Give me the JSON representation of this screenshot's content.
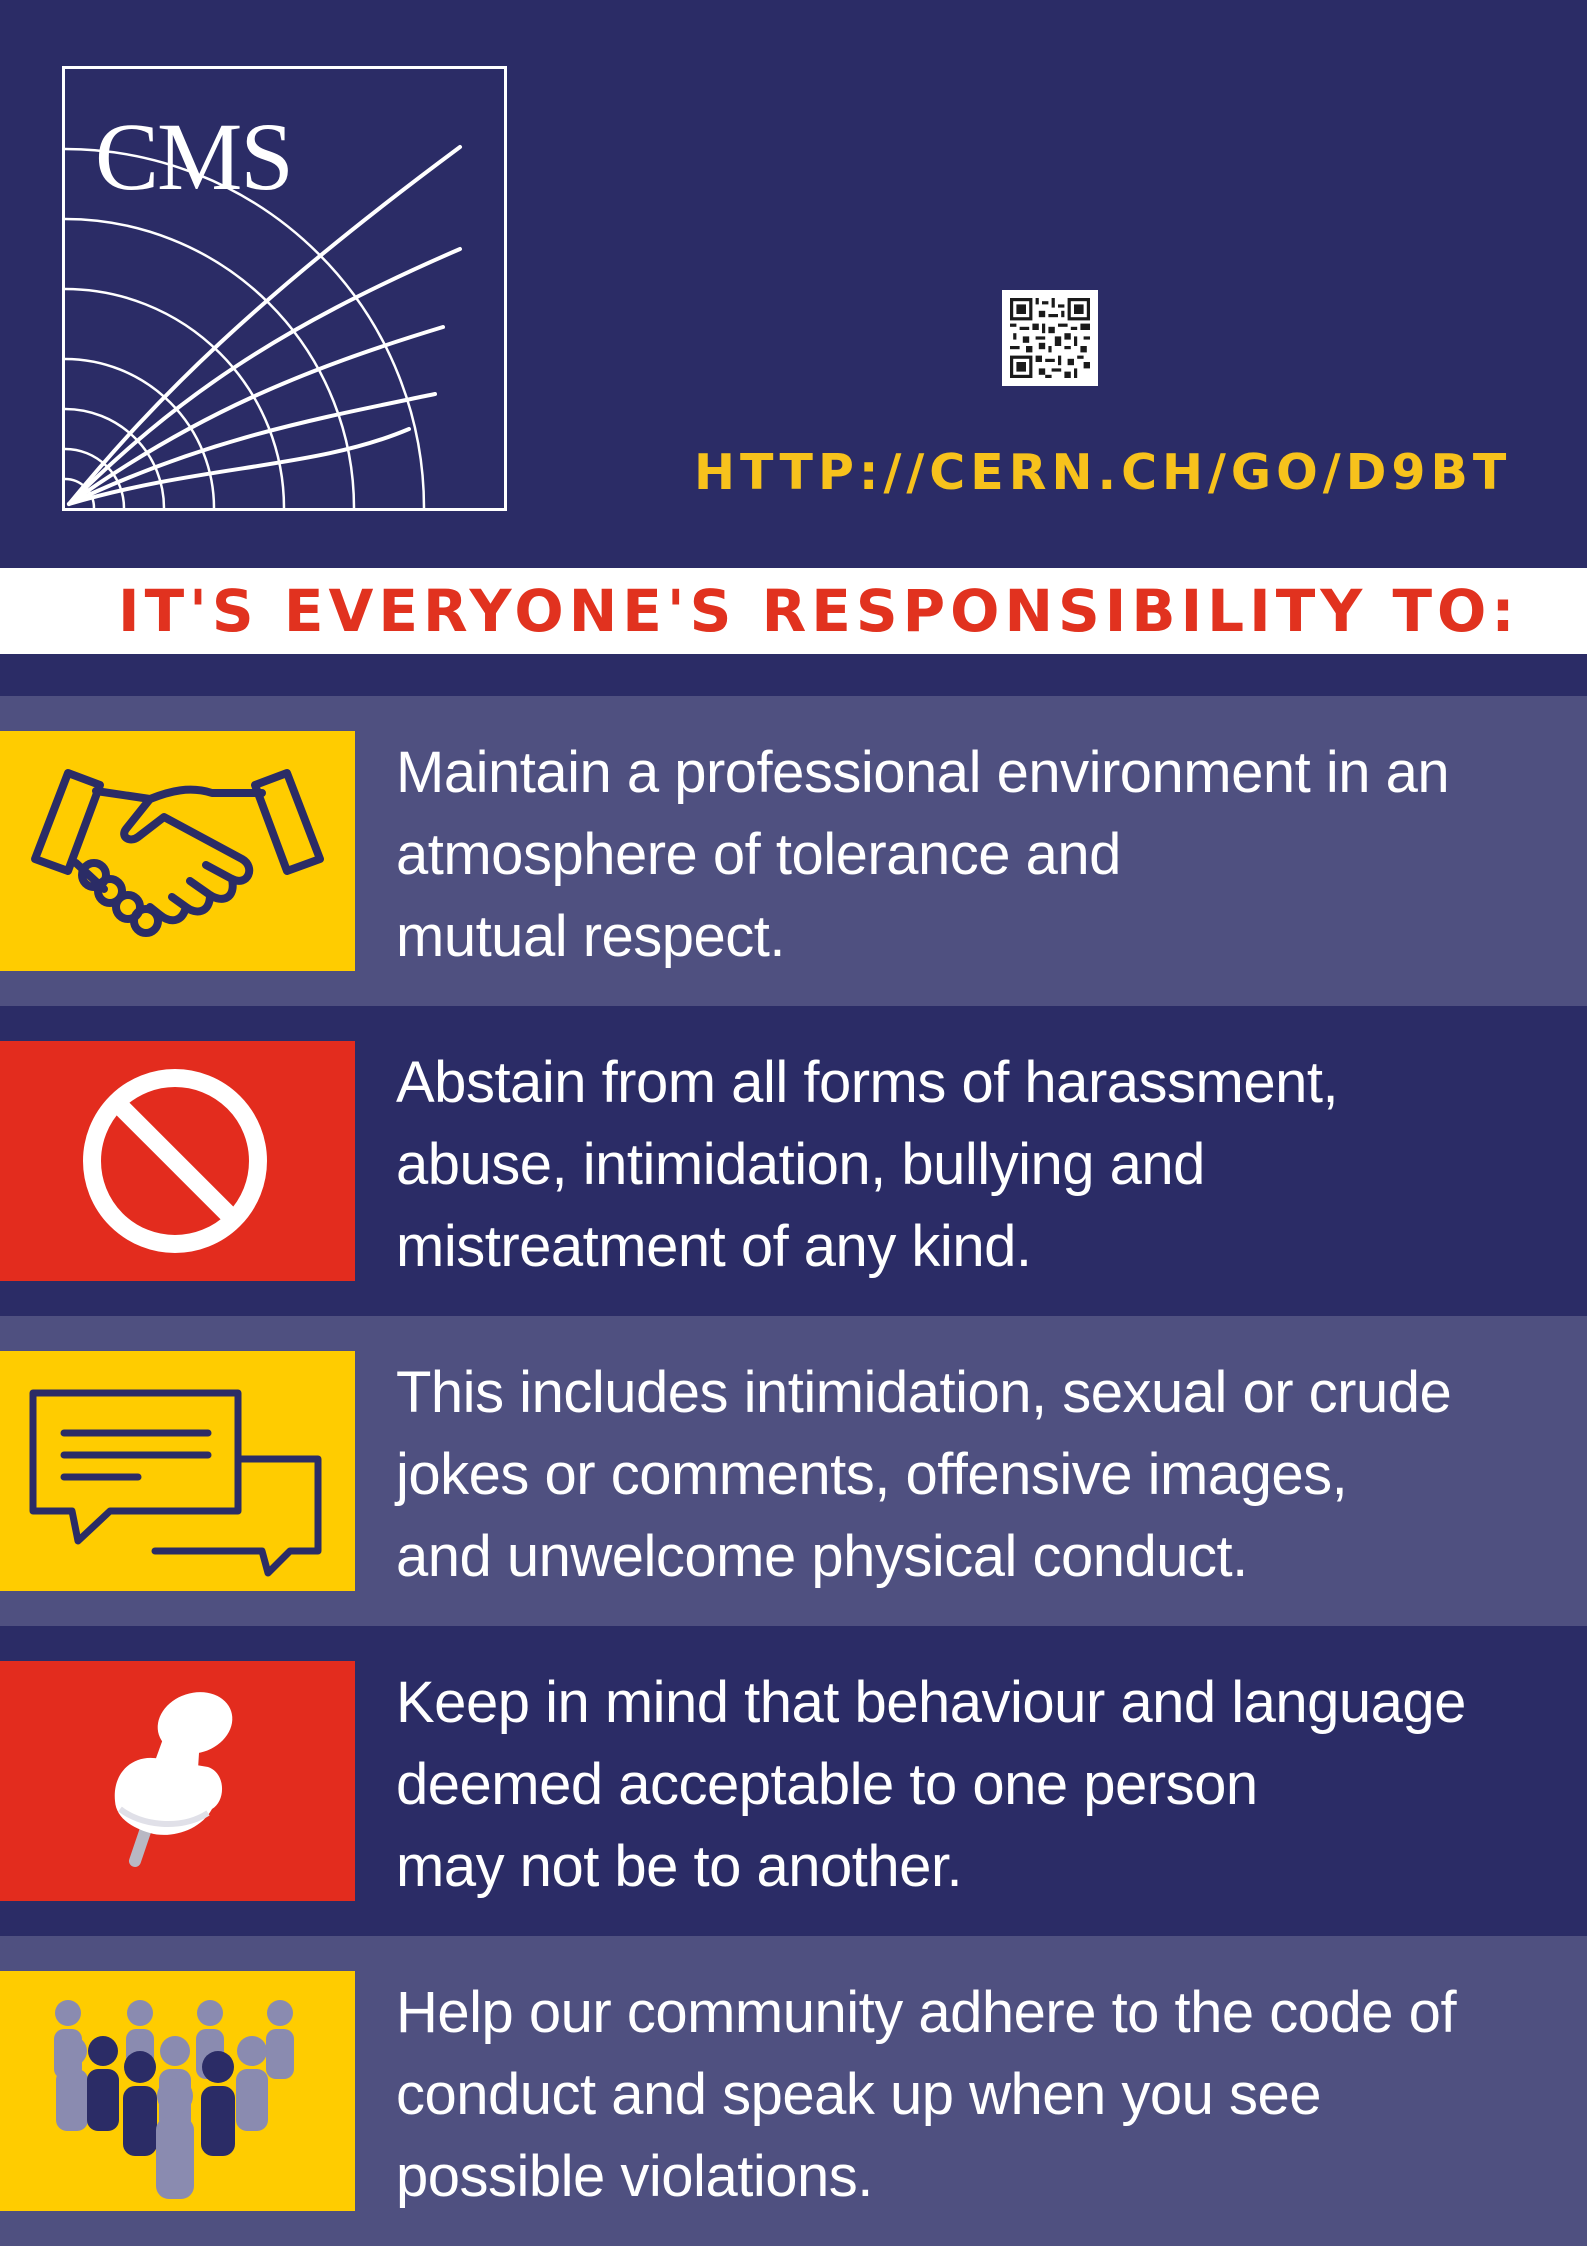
{
  "logo": {
    "text": "CMS"
  },
  "qr": {
    "icon": "qr-code-icon"
  },
  "url": "HTTP://CERN.CH/GO/D9BT",
  "banner": "IT'S EVERYONE'S RESPONSIBILITY TO:",
  "colors": {
    "navy": "#2b2c66",
    "slate": "#4f5080",
    "yellow": "#ffcc00",
    "red": "#e32c1e",
    "url_yellow": "#f7c21c"
  },
  "items": [
    {
      "icon": "handshake-icon",
      "lines": [
        "Maintain a professional environment in an",
        "atmosphere of tolerance and",
        "mutual respect."
      ]
    },
    {
      "icon": "prohibited-icon",
      "lines": [
        "Abstain from all forms of harassment,",
        "abuse, intimidation, bullying and",
        "mistreatment of any kind."
      ]
    },
    {
      "icon": "speech-bubbles-icon",
      "lines": [
        "This includes intimidation, sexual or crude",
        "jokes or comments, offensive images,",
        "and unwelcome physical conduct."
      ]
    },
    {
      "icon": "pushpin-icon",
      "lines": [
        "Keep in mind that behaviour and language",
        "deemed acceptable to one person",
        "may not be to another."
      ]
    },
    {
      "icon": "people-group-icon",
      "lines": [
        "Help our community adhere to the code of",
        "conduct and speak up when you see",
        "possible violations."
      ]
    }
  ]
}
